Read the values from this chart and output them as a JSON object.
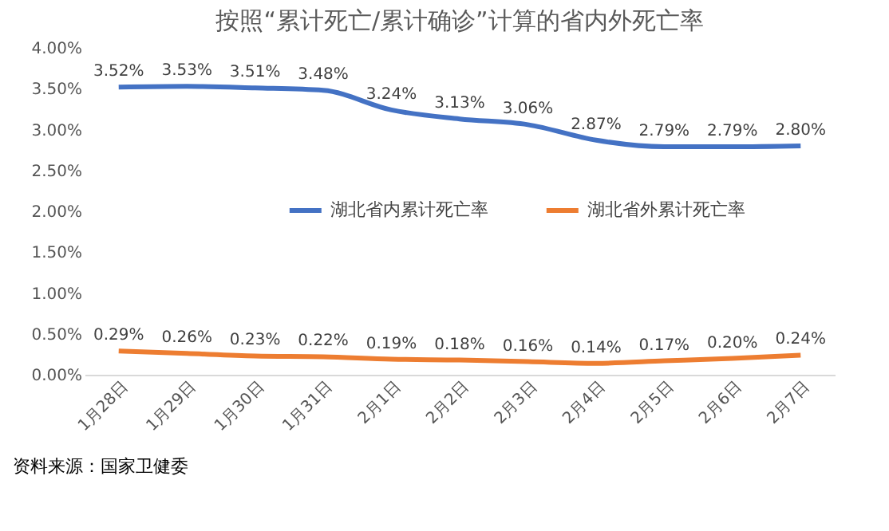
{
  "chart_data": {
    "type": "line",
    "title": "按照“累计死亡/累计确诊”计算的省内外死亡率",
    "categories": [
      "1月28日",
      "1月29日",
      "1月30日",
      "1月31日",
      "2月1日",
      "2月2日",
      "2月3日",
      "2月4日",
      "2月5日",
      "2月6日",
      "2月7日"
    ],
    "series": [
      {
        "name": "湖北省内累计死亡率",
        "color": "#4472c4",
        "values": [
          3.52,
          3.53,
          3.51,
          3.48,
          3.24,
          3.13,
          3.06,
          2.87,
          2.79,
          2.79,
          2.8
        ],
        "value_labels": [
          "3.52%",
          "3.53%",
          "3.51%",
          "3.48%",
          "3.24%",
          "3.13%",
          "3.06%",
          "2.87%",
          "2.79%",
          "2.79%",
          "2.80%"
        ]
      },
      {
        "name": "湖北省外累计死亡率",
        "color": "#ed7d31",
        "values": [
          0.29,
          0.26,
          0.23,
          0.22,
          0.19,
          0.18,
          0.16,
          0.14,
          0.17,
          0.2,
          0.24
        ],
        "value_labels": [
          "0.29%",
          "0.26%",
          "0.23%",
          "0.22%",
          "0.19%",
          "0.18%",
          "0.16%",
          "0.14%",
          "0.17%",
          "0.20%",
          "0.24%"
        ]
      }
    ],
    "ylim": [
      0,
      4
    ],
    "yticks": [
      {
        "value": 0,
        "label": "0.00%"
      },
      {
        "value": 0.5,
        "label": "0.50%"
      },
      {
        "value": 1,
        "label": "1.00%"
      },
      {
        "value": 1.5,
        "label": "1.50%"
      },
      {
        "value": 2,
        "label": "2.00%"
      },
      {
        "value": 2.5,
        "label": "2.50%"
      },
      {
        "value": 3,
        "label": "3.00%"
      },
      {
        "value": 3.5,
        "label": "3.50%"
      },
      {
        "value": 4,
        "label": "4.00%"
      }
    ],
    "grid": false,
    "legend": "center",
    "marker": "none",
    "line_style": "solid",
    "annotations": [
      "资料来源：国家卫健委"
    ]
  }
}
